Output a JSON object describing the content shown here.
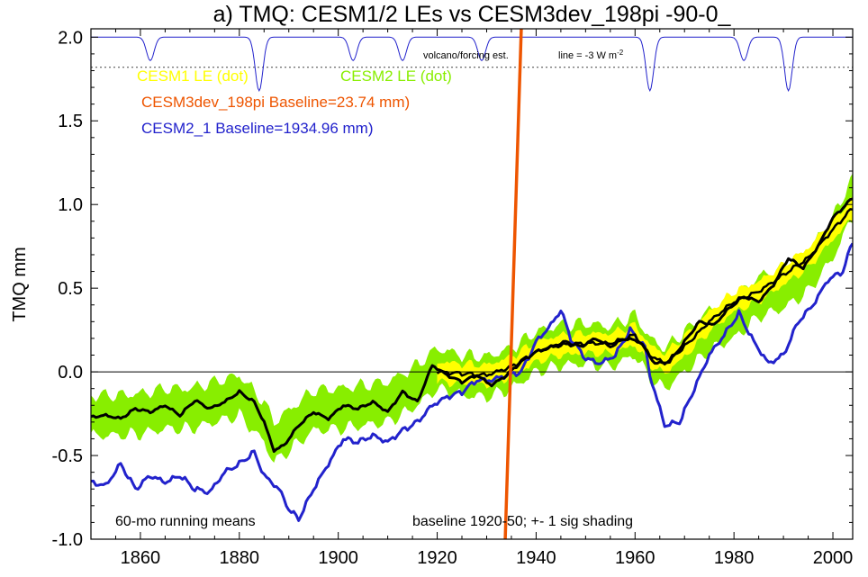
{
  "chart_data": {
    "type": "line",
    "title": "a) TMQ: CESM1/2 LEs vs CESM3dev_198pi -90-0_",
    "xlabel": "",
    "ylabel": "TMQ mm",
    "xlim": [
      1850,
      2004
    ],
    "ylim": [
      -1.0,
      2.05
    ],
    "xticks": [
      1860,
      1880,
      1900,
      1920,
      1940,
      1960,
      1980,
      2000
    ],
    "yticks": [
      -1.0,
      -0.5,
      0.0,
      0.5,
      1.0,
      1.5,
      2.0
    ],
    "ytick_labels": [
      "-1.0",
      "-0.5",
      "0.0",
      "0.5",
      "1.0",
      "1.5",
      "2.0"
    ],
    "grid": false,
    "colors": {
      "cesm1_le": "#ffff00",
      "cesm2_le": "#88ee00",
      "cesm3dev": "#ee5500",
      "cesm2_1": "#2222cc",
      "ensemble_mean": "#000000",
      "volcano": "#2222cc"
    },
    "legend": {
      "placement": "top-left",
      "cesm1": "CESM1 LE (dot)",
      "cesm2": "CESM2 LE (dot)",
      "cesm3": "CESM3dev_198pi Baseline=23.74 mm)",
      "cesm21": "CESM2_1 Baseline=1934.96 mm)"
    },
    "annotations": {
      "volcano": "volcano/forcing est.",
      "line_scale": "line = -3 W m",
      "line_scale_sup": "-2",
      "running": "60-mo running means",
      "baseline": "baseline 1920-50; +- 1 sig shading"
    },
    "series": [
      {
        "key": "cesm2_le_mean",
        "x": [
          1850,
          1855,
          1860,
          1865,
          1870,
          1875,
          1880,
          1885,
          1887,
          1890,
          1895,
          1900,
          1905,
          1910,
          1915,
          1920,
          1925,
          1930,
          1935,
          1940,
          1945,
          1950,
          1955,
          1960,
          1963,
          1966,
          1970,
          1975,
          1980,
          1985,
          1990,
          1995,
          2000,
          2004
        ],
        "values": [
          -0.26,
          -0.26,
          -0.25,
          -0.22,
          -0.22,
          -0.18,
          -0.14,
          -0.3,
          -0.42,
          -0.35,
          -0.23,
          -0.22,
          -0.2,
          -0.18,
          -0.1,
          0.02,
          -0.02,
          -0.03,
          0.02,
          0.12,
          0.16,
          0.17,
          0.15,
          0.22,
          0.08,
          0.02,
          0.12,
          0.25,
          0.32,
          0.45,
          0.5,
          0.6,
          0.8,
          1.05
        ],
        "sigma": 0.12
      },
      {
        "key": "cesm1_le_mean",
        "x": [
          1920,
          1925,
          1930,
          1935,
          1940,
          1945,
          1950,
          1955,
          1960,
          1963,
          1966,
          1970,
          1975,
          1980,
          1985,
          1990,
          1995,
          2000,
          2004
        ],
        "values": [
          0.0,
          -0.01,
          -0.02,
          0.03,
          0.12,
          0.16,
          0.17,
          0.17,
          0.22,
          0.1,
          0.05,
          0.15,
          0.3,
          0.42,
          0.48,
          0.58,
          0.68,
          0.85,
          0.98
        ],
        "sigma": 0.06
      },
      {
        "key": "ensemble_mean_line",
        "x": [
          1850,
          1853,
          1856,
          1859,
          1862,
          1865,
          1868,
          1871,
          1874,
          1877,
          1880,
          1883,
          1885,
          1887,
          1889,
          1892,
          1895,
          1898,
          1901,
          1904,
          1907,
          1910,
          1913,
          1916,
          1919,
          1922,
          1925,
          1928,
          1931,
          1934,
          1937,
          1940,
          1943,
          1946,
          1949,
          1952,
          1955,
          1958,
          1961,
          1964,
          1967,
          1970,
          1973,
          1976,
          1979,
          1982,
          1985,
          1988,
          1991,
          1994,
          1997,
          2000,
          2004
        ],
        "values": [
          -0.27,
          -0.26,
          -0.28,
          -0.22,
          -0.24,
          -0.2,
          -0.26,
          -0.17,
          -0.22,
          -0.18,
          -0.12,
          -0.18,
          -0.3,
          -0.47,
          -0.44,
          -0.32,
          -0.24,
          -0.28,
          -0.2,
          -0.22,
          -0.18,
          -0.24,
          -0.12,
          -0.18,
          0.04,
          -0.02,
          -0.06,
          -0.02,
          -0.08,
          -0.02,
          0.06,
          0.12,
          0.15,
          0.18,
          0.15,
          0.2,
          0.15,
          0.2,
          0.18,
          0.05,
          0.06,
          0.18,
          0.3,
          0.28,
          0.38,
          0.45,
          0.42,
          0.52,
          0.68,
          0.62,
          0.75,
          0.92,
          1.04
        ]
      },
      {
        "key": "cesm2_1",
        "x": [
          1850,
          1853,
          1856,
          1859,
          1862,
          1865,
          1868,
          1871,
          1874,
          1877,
          1880,
          1883,
          1885,
          1888,
          1890,
          1892,
          1895,
          1898,
          1901,
          1904,
          1907,
          1910,
          1913,
          1916,
          1919,
          1922,
          1925,
          1928,
          1931,
          1934,
          1937,
          1940,
          1943,
          1945,
          1947,
          1950,
          1953,
          1956,
          1959,
          1962,
          1963,
          1966,
          1969,
          1972,
          1975,
          1978,
          1981,
          1984,
          1987,
          1990,
          1993,
          1996,
          1999,
          2002,
          2004
        ],
        "values": [
          -0.66,
          -0.68,
          -0.55,
          -0.7,
          -0.62,
          -0.66,
          -0.62,
          -0.7,
          -0.72,
          -0.6,
          -0.55,
          -0.48,
          -0.62,
          -0.7,
          -0.82,
          -0.88,
          -0.7,
          -0.55,
          -0.4,
          -0.42,
          -0.38,
          -0.42,
          -0.35,
          -0.3,
          -0.2,
          -0.15,
          -0.12,
          -0.05,
          -0.05,
          -0.02,
          0.0,
          0.18,
          0.28,
          0.37,
          0.2,
          0.08,
          0.05,
          0.1,
          0.25,
          0.15,
          -0.02,
          -0.32,
          -0.3,
          -0.1,
          0.1,
          0.22,
          0.35,
          0.18,
          0.05,
          0.1,
          0.3,
          0.4,
          0.55,
          0.6,
          0.78
        ]
      },
      {
        "key": "cesm3dev",
        "x": [
          1933.7,
          1937.0
        ],
        "values": [
          -1.05,
          2.05
        ]
      }
    ],
    "volcano_dips": [
      1862,
      1884,
      1903,
      1913,
      1929,
      1963,
      1982,
      1991
    ]
  }
}
